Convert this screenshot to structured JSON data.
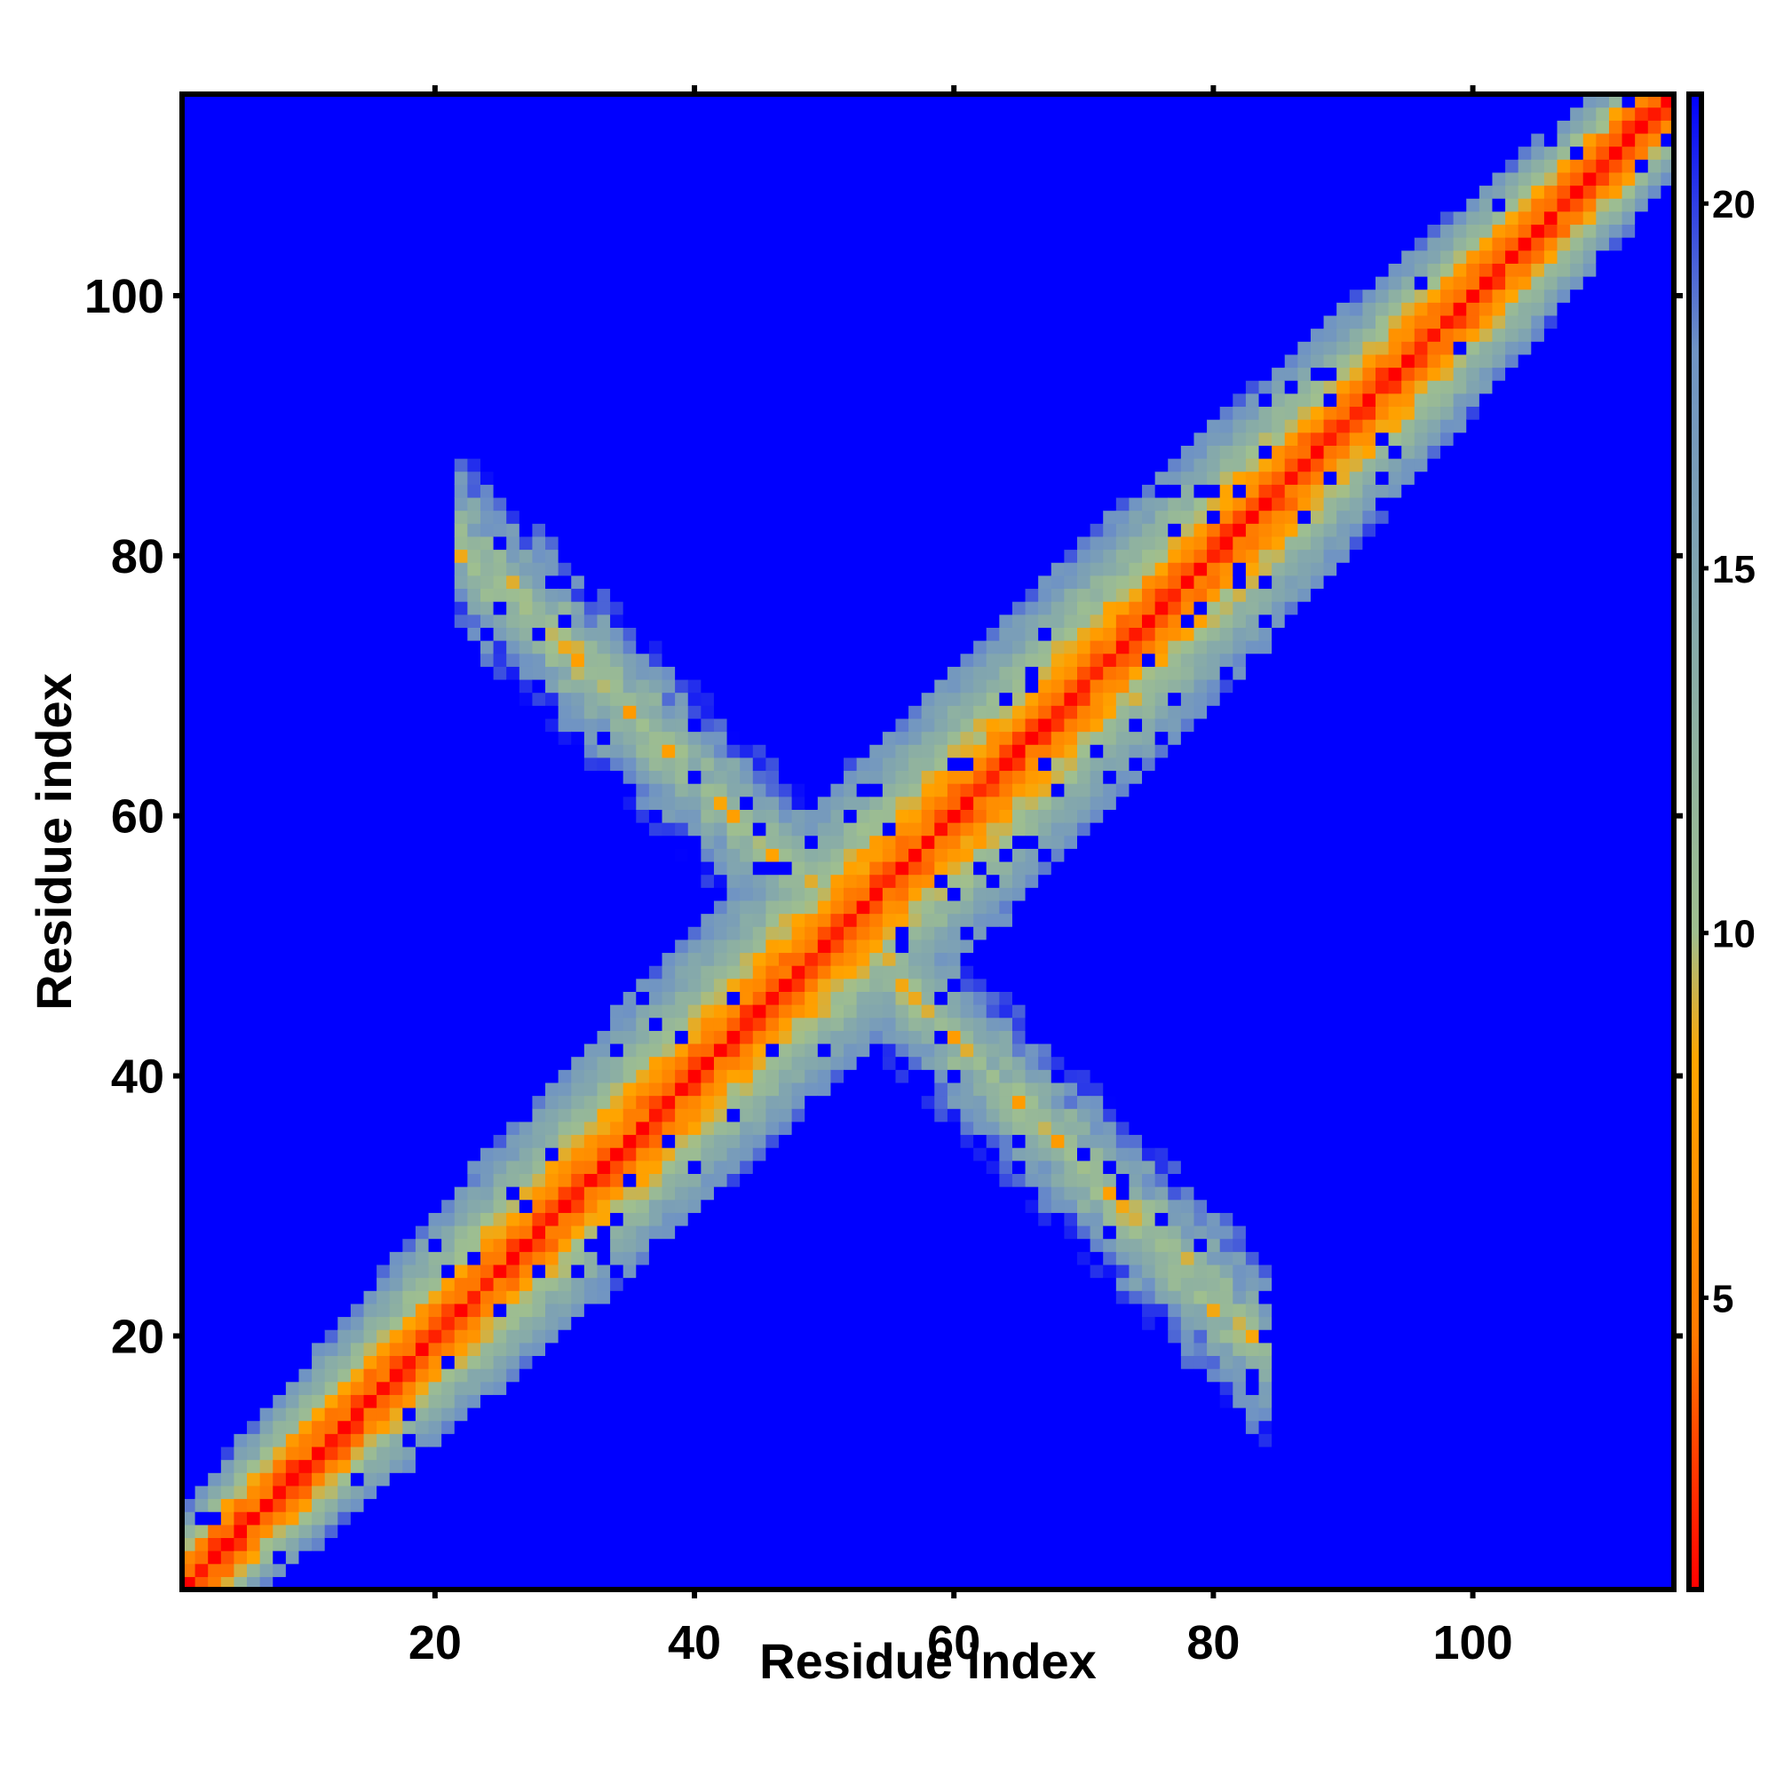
{
  "chart_data": {
    "type": "heatmap",
    "title": "",
    "xlabel": "Residue index",
    "ylabel": "Residue index",
    "xlim": [
      1,
      115
    ],
    "ylim": [
      1,
      115
    ],
    "x_ticks": [
      "20",
      "40",
      "60",
      "80",
      "100"
    ],
    "y_ticks": [
      "20",
      "40",
      "60",
      "80",
      "100"
    ],
    "x_tick_values": [
      20,
      40,
      60,
      80,
      100
    ],
    "y_tick_values": [
      20,
      40,
      60,
      80,
      100
    ],
    "n_residues": 115,
    "colorbar": {
      "range": [
        1,
        21.5
      ],
      "ticks": [
        "5",
        "10",
        "15",
        "20"
      ],
      "tick_values": [
        5,
        10,
        15,
        20
      ],
      "colors": [
        "#ff0000",
        "#ff7a00",
        "#ffa500",
        "#9fbf8f",
        "#86aaaa",
        "#6f93c4",
        "#0000ff"
      ],
      "color_stops": [
        1,
        4.5,
        8.3,
        10,
        14,
        18,
        21.5
      ]
    },
    "description_of_values": "Residue-residue distance map: low values (red) along the diagonal, medium (orange/green) in a widening band, an anti-diagonal cross arm spanning roughly residues 20-84 crossing near 50, background value ~21.5 (blue)",
    "features": {
      "diagonal_band_halfwidth": 9,
      "anti_diagonal_arm": {
        "x_range": [
          22,
          84
        ],
        "sum": 103,
        "halfwidth": 7
      }
    }
  }
}
